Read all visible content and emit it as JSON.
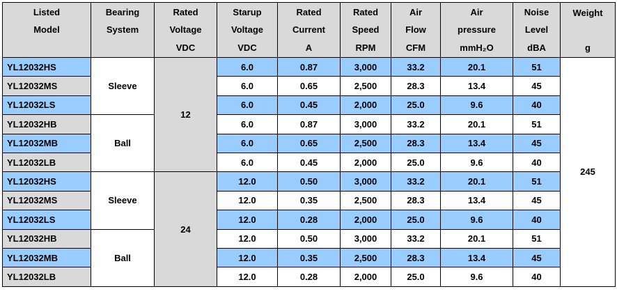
{
  "headers": [
    {
      "line1": "Listed",
      "line2": "Model",
      "unit": ""
    },
    {
      "line1": "Bearing",
      "line2": "System",
      "unit": ""
    },
    {
      "line1": "Rated",
      "line2": "Voltage",
      "unit": "VDC"
    },
    {
      "line1": "Starup",
      "line2": "Voltage",
      "unit": "VDC"
    },
    {
      "line1": "Rated",
      "line2": "Current",
      "unit": "A"
    },
    {
      "line1": "Rated",
      "line2": "Speed",
      "unit": "RPM"
    },
    {
      "line1": "Air",
      "line2": "Flow",
      "unit": "CFM"
    },
    {
      "line1": "Air",
      "line2": "pressure",
      "unit": "mmH₂O"
    },
    {
      "line1": "Noise",
      "line2": "Level",
      "unit": "dBA"
    },
    {
      "line1": "Weight",
      "line2": "",
      "unit": "g"
    }
  ],
  "groups": {
    "bearing": [
      "Sleeve",
      "Ball",
      "Sleeve",
      "Ball"
    ],
    "rated_voltage": [
      "12",
      "24"
    ],
    "weight": "245"
  },
  "rows": [
    {
      "model": "YL12032HS",
      "startup": "6.0",
      "current": "0.87",
      "speed": "3,000",
      "flow": "33.2",
      "pressure": "20.1",
      "noise": "51"
    },
    {
      "model": "YL12032MS",
      "startup": "6.0",
      "current": "0.65",
      "speed": "2,500",
      "flow": "28.3",
      "pressure": "13.4",
      "noise": "45"
    },
    {
      "model": "YL12032LS",
      "startup": "6.0",
      "current": "0.45",
      "speed": "2,000",
      "flow": "25.0",
      "pressure": "9.6",
      "noise": "40"
    },
    {
      "model": "YL12032HB",
      "startup": "6.0",
      "current": "0.87",
      "speed": "3,000",
      "flow": "33.2",
      "pressure": "20.1",
      "noise": "51"
    },
    {
      "model": "YL12032MB",
      "startup": "6.0",
      "current": "0.65",
      "speed": "2,500",
      "flow": "28.3",
      "pressure": "13.4",
      "noise": "45"
    },
    {
      "model": "YL12032LB",
      "startup": "6.0",
      "current": "0.45",
      "speed": "2,000",
      "flow": "25.0",
      "pressure": "9.6",
      "noise": "40"
    },
    {
      "model": "YL12032HS",
      "startup": "12.0",
      "current": "0.50",
      "speed": "3,000",
      "flow": "33.2",
      "pressure": "20.1",
      "noise": "51"
    },
    {
      "model": "YL12032MS",
      "startup": "12.0",
      "current": "0.35",
      "speed": "2,500",
      "flow": "28.3",
      "pressure": "13.4",
      "noise": "45"
    },
    {
      "model": "YL12032LS",
      "startup": "12.0",
      "current": "0.28",
      "speed": "2,000",
      "flow": "25.0",
      "pressure": "9.6",
      "noise": "40"
    },
    {
      "model": "YL12032HB",
      "startup": "12.0",
      "current": "0.50",
      "speed": "3,000",
      "flow": "33.2",
      "pressure": "20.1",
      "noise": "51"
    },
    {
      "model": "YL12032MB",
      "startup": "12.0",
      "current": "0.35",
      "speed": "2,500",
      "flow": "28.3",
      "pressure": "13.4",
      "noise": "45"
    },
    {
      "model": "YL12032LB",
      "startup": "12.0",
      "current": "0.28",
      "speed": "2,000",
      "flow": "25.0",
      "pressure": "9.6",
      "noise": "40"
    }
  ],
  "colors": {
    "header_grey": "#d9d9d9",
    "row_blue": "#99ccff",
    "white": "#ffffff"
  }
}
